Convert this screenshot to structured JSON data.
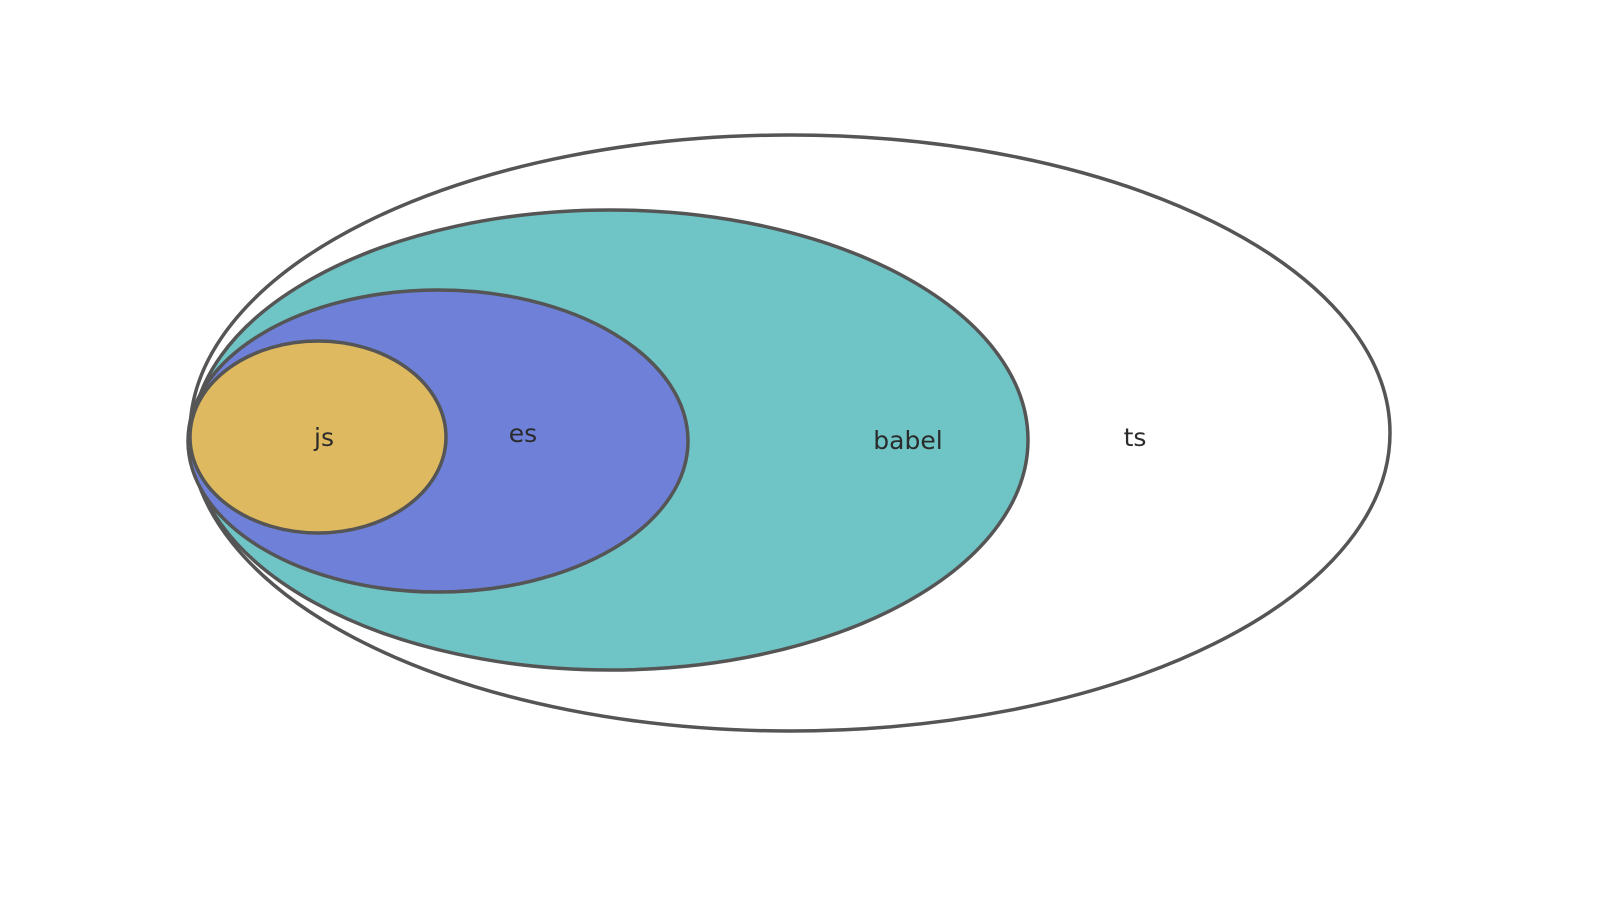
{
  "diagram": {
    "type": "nested-set-diagram",
    "stroke_color": "#555555",
    "sets": [
      {
        "id": "ts",
        "label": "ts",
        "fill": "#ffffff",
        "contains": [
          "babel"
        ]
      },
      {
        "id": "babel",
        "label": "babel",
        "fill": "#6fc4c5",
        "contains": [
          "es"
        ]
      },
      {
        "id": "es",
        "label": "es",
        "fill": "#6e80d8",
        "contains": [
          "js"
        ]
      },
      {
        "id": "js",
        "label": "js",
        "fill": "#dfb95f",
        "contains": []
      }
    ]
  }
}
